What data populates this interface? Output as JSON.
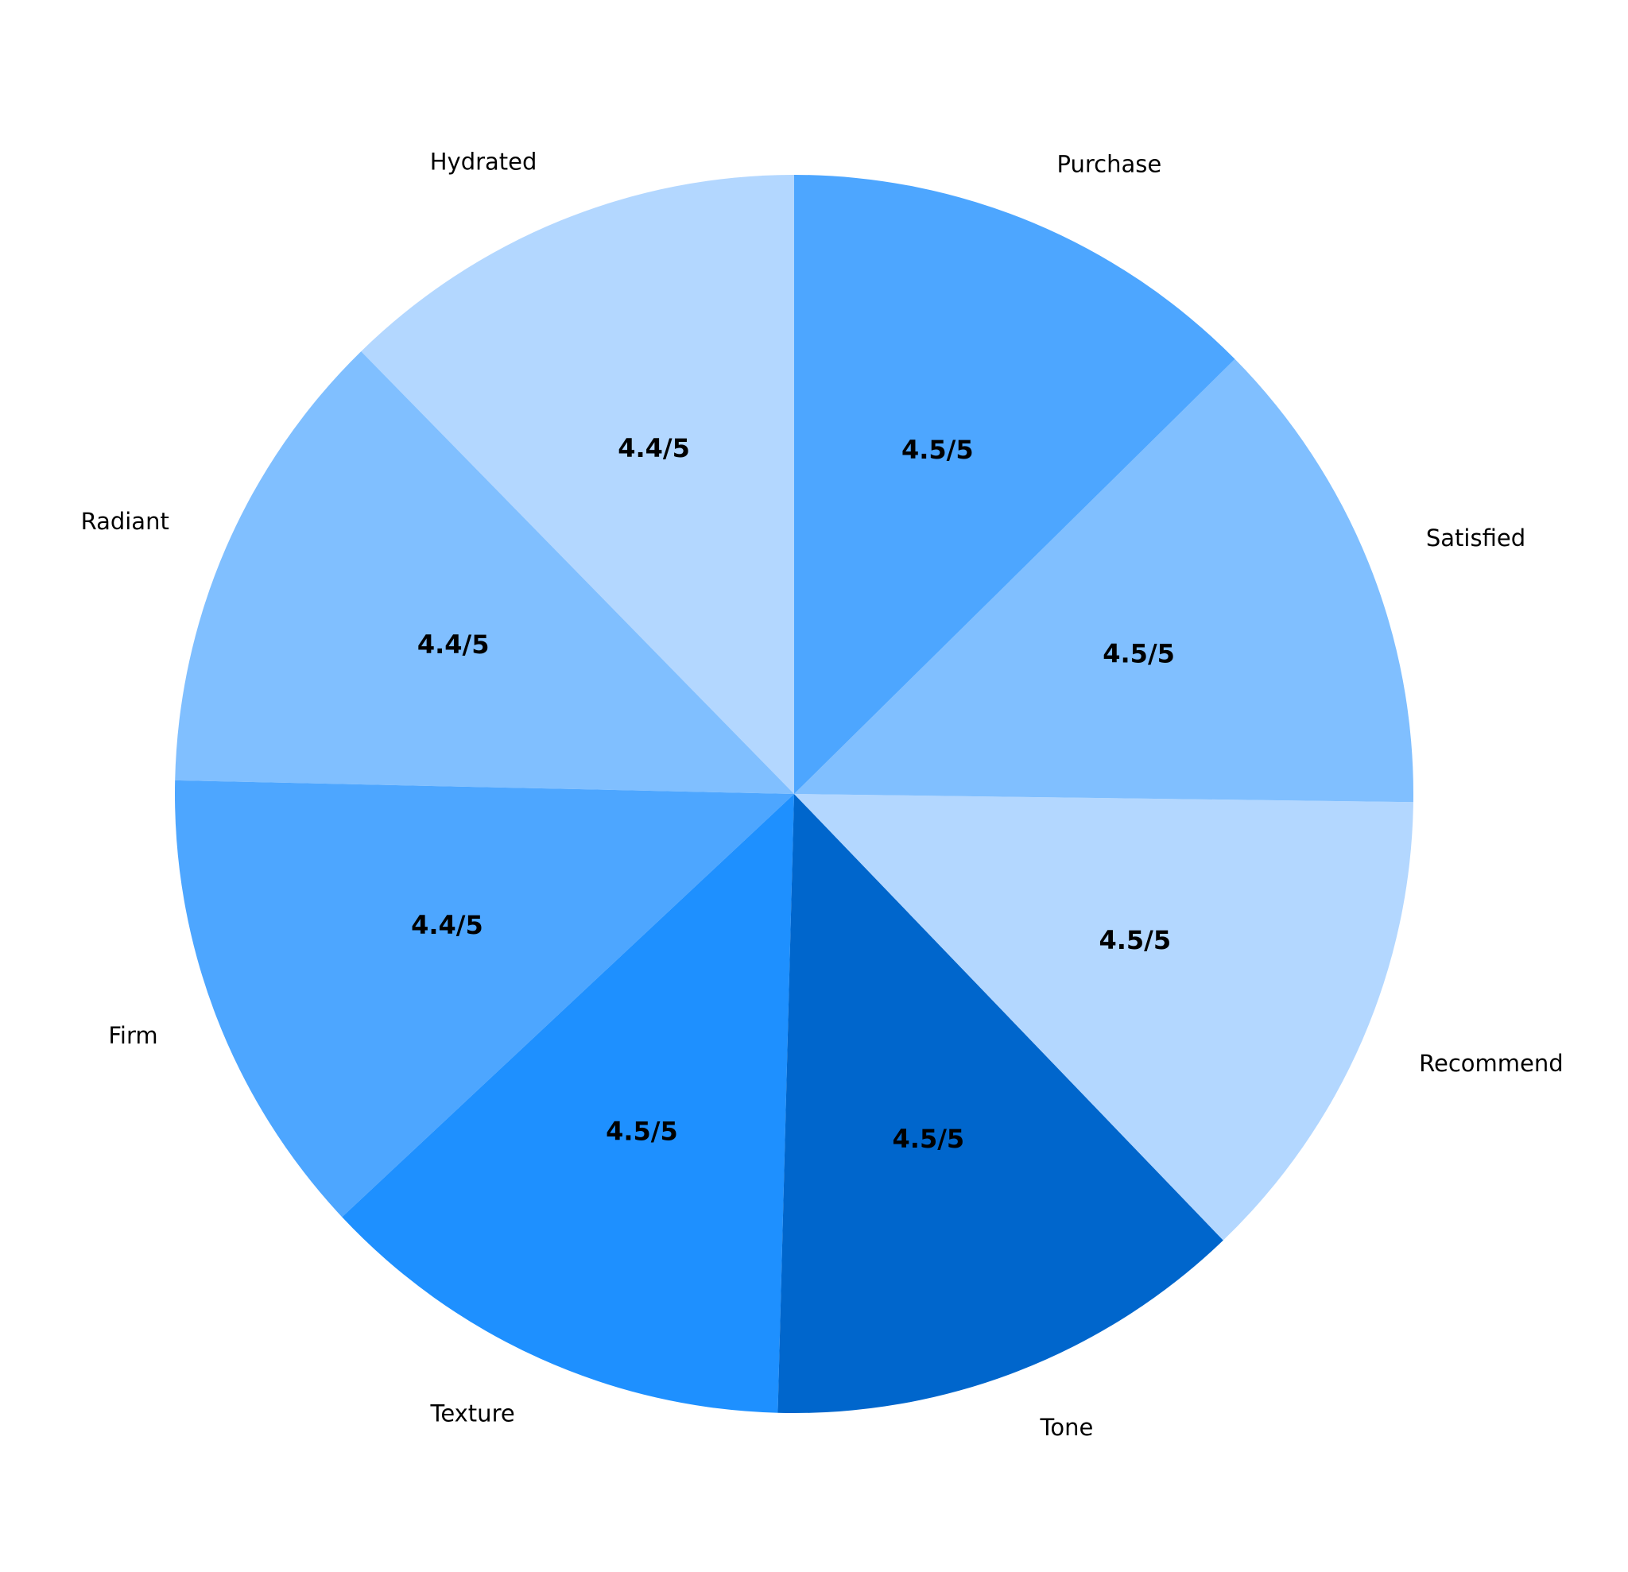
{
  "chart_data": {
    "type": "pie",
    "categories": [
      "Hydrated",
      "Radiant",
      "Firm",
      "Texture",
      "Tone",
      "Recommend",
      "Satisfied",
      "Purchase"
    ],
    "values": [
      4.4,
      4.4,
      4.4,
      4.5,
      4.5,
      4.5,
      4.5,
      4.5
    ],
    "value_labels": [
      "4.4/5",
      "4.4/5",
      "4.4/5",
      "4.5/5",
      "4.5/5",
      "4.5/5",
      "4.5/5",
      "4.5/5"
    ],
    "colors": [
      "#b3d7ff",
      "#80bfff",
      "#4da6ff",
      "#1e90ff",
      "#0066cc",
      "#b3d7ff",
      "#80bfff",
      "#4da6ff"
    ]
  }
}
